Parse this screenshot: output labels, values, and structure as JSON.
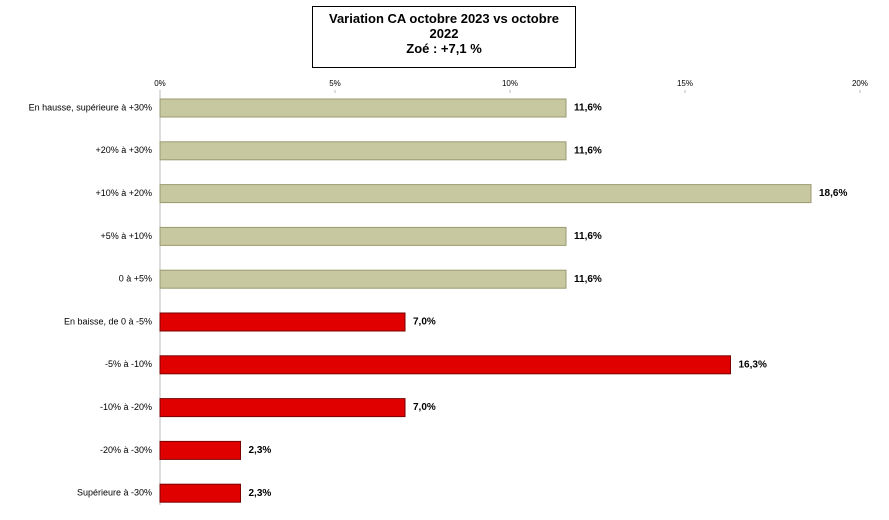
{
  "chart_data": {
    "type": "bar",
    "orientation": "horizontal",
    "title": "Variation CA octobre 2023 vs octobre 2022",
    "subtitle": "Zoé : +7,1 %",
    "categories": [
      "En hausse, supérieure à +30%",
      "+20% à +30%",
      "+10% à +20%",
      "+5% à +10%",
      "0 à +5%",
      "En baisse, de 0 à -5%",
      "-5% à -10%",
      "-10% à -20%",
      "-20% à -30%",
      "Supérieure à -30%"
    ],
    "values": [
      11.6,
      11.6,
      18.6,
      11.6,
      11.6,
      7.0,
      16.3,
      7.0,
      2.3,
      2.3
    ],
    "value_labels": [
      "11,6%",
      "11,6%",
      "18,6%",
      "11,6%",
      "11,6%",
      "7,0%",
      "16,3%",
      "7,0%",
      "2,3%",
      "2,3%"
    ],
    "colors": [
      "#c8c8a0",
      "#c8c8a0",
      "#c8c8a0",
      "#c8c8a0",
      "#c8c8a0",
      "#e00000",
      "#e00000",
      "#e00000",
      "#e00000",
      "#e00000"
    ],
    "xlim": [
      0,
      20
    ],
    "xticks": [
      {
        "value": 0,
        "label": "0%"
      },
      {
        "value": 5,
        "label": "5%"
      },
      {
        "value": 10,
        "label": "10%"
      },
      {
        "value": 15,
        "label": "15%"
      },
      {
        "value": 20,
        "label": "20%"
      }
    ]
  }
}
